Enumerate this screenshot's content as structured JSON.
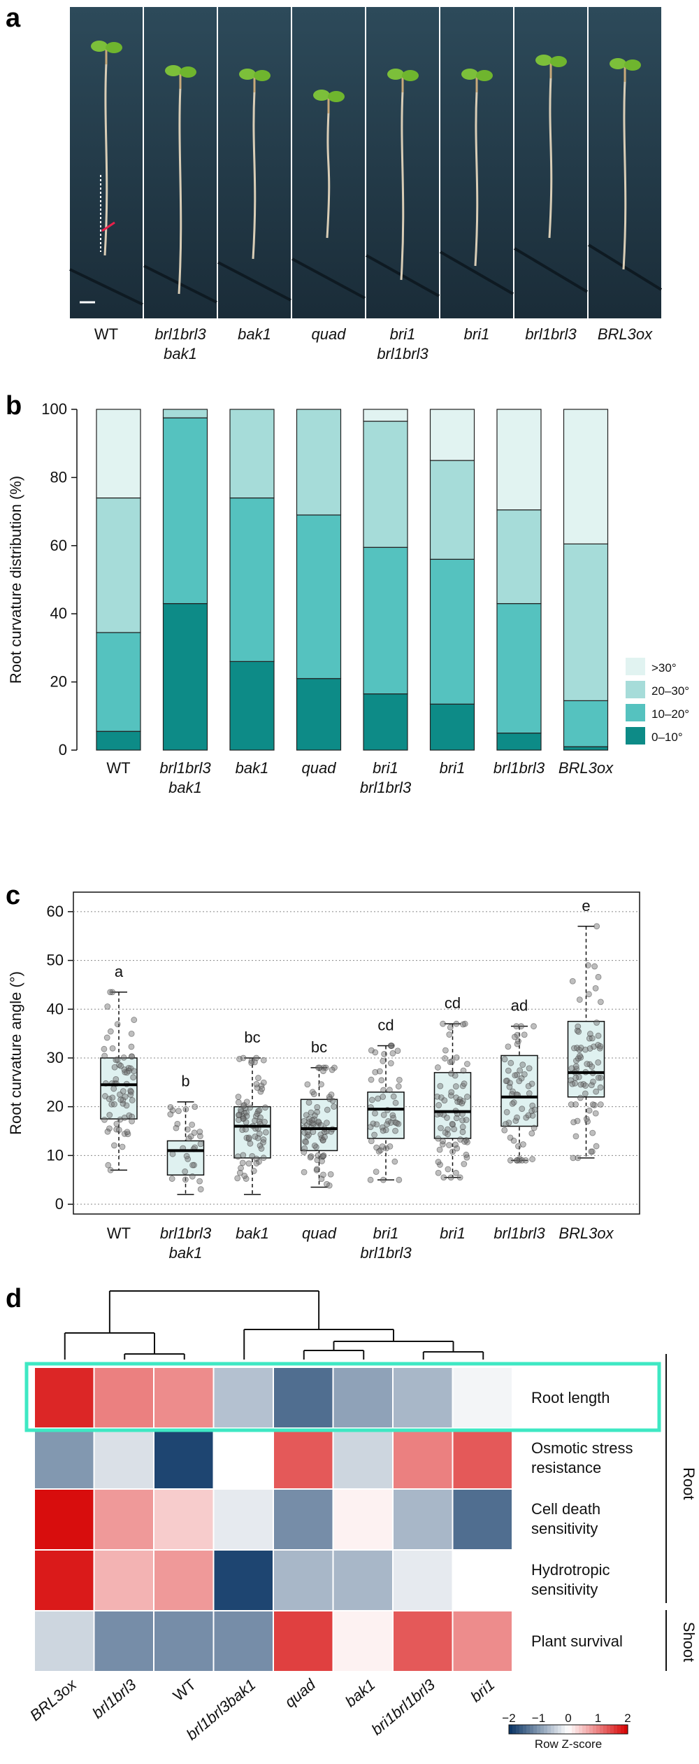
{
  "panel_a": {
    "letter": "a",
    "genotypes": [
      {
        "l1": "WT",
        "l2": "",
        "italic": false
      },
      {
        "l1": "brl1brl3",
        "l2": "bak1",
        "italic": true
      },
      {
        "l1": "bak1",
        "l2": "",
        "italic": true
      },
      {
        "l1": "quad",
        "l2": "",
        "italic": true
      },
      {
        "l1": "bri1",
        "l2": "brl1brl3",
        "italic": true
      },
      {
        "l1": "bri1",
        "l2": "",
        "italic": true
      },
      {
        "l1": "brl1brl3",
        "l2": "",
        "italic": true
      },
      {
        "l1": "BRL3ox",
        "l2": "",
        "italic": true
      }
    ]
  },
  "panel_b": {
    "letter": "b"
  },
  "panel_c": {
    "letter": "c"
  },
  "panel_d": {
    "letter": "d"
  },
  "colors": {
    "c0_10": "#0d8b87",
    "c10_20": "#55c2bf",
    "c20_30": "#a6dcd9",
    "c30": "#e1f3f1",
    "box_fill": "#dff1f0",
    "heat_low": "#053061",
    "heat_mid": "#ffffff",
    "heat_high": "#d60000",
    "highlight": "#3ee8c3"
  },
  "chart_data": [
    {
      "type": "bar",
      "stacked": true,
      "title": "",
      "ylabel": "Root curvature distribution (%)",
      "xlabel": "",
      "ylim": [
        0,
        100
      ],
      "yticks": [
        0,
        20,
        40,
        60,
        80,
        100
      ],
      "categories": [
        {
          "l1": "WT",
          "l2": "",
          "italic": false
        },
        {
          "l1": "brl1brl3",
          "l2": "bak1",
          "italic": true
        },
        {
          "l1": "bak1",
          "l2": "",
          "italic": true
        },
        {
          "l1": "quad",
          "l2": "",
          "italic": true
        },
        {
          "l1": "bri1",
          "l2": "brl1brl3",
          "italic": true
        },
        {
          "l1": "bri1",
          "l2": "",
          "italic": true
        },
        {
          "l1": "brl1brl3",
          "l2": "",
          "italic": true
        },
        {
          "l1": "BRL3ox",
          "l2": "",
          "italic": true
        }
      ],
      "series": [
        {
          "name": "0–10°",
          "color": "#0d8b87",
          "values": [
            5.5,
            43,
            26,
            21,
            16.5,
            13.5,
            5,
            1
          ]
        },
        {
          "name": "10–20°",
          "color": "#55c2bf",
          "values": [
            29,
            54.5,
            48,
            48,
            43,
            42.5,
            38,
            13.5
          ]
        },
        {
          "name": "20–30°",
          "color": "#a6dcd9",
          "values": [
            39.5,
            2.5,
            26,
            31,
            37,
            29,
            27.5,
            46
          ]
        },
        {
          "name": ">30°",
          "color": "#e1f3f1",
          "values": [
            26,
            0,
            0,
            0,
            3.5,
            15,
            29.5,
            39.5
          ]
        }
      ],
      "legend": [
        ">30°",
        "20–30°",
        "10–20°",
        "0–10°"
      ],
      "legend_position": "right"
    },
    {
      "type": "box",
      "title": "",
      "ylabel": "Root curvature angle (°)",
      "xlabel": "",
      "ylim": [
        0,
        60
      ],
      "yticks": [
        0,
        10,
        20,
        30,
        40,
        50,
        60
      ],
      "grid": true,
      "categories": [
        {
          "l1": "WT",
          "l2": "",
          "italic": false
        },
        {
          "l1": "brl1brl3",
          "l2": "bak1",
          "italic": true
        },
        {
          "l1": "bak1",
          "l2": "",
          "italic": true
        },
        {
          "l1": "quad",
          "l2": "",
          "italic": true
        },
        {
          "l1": "bri1",
          "l2": "brl1brl3",
          "italic": true
        },
        {
          "l1": "bri1",
          "l2": "",
          "italic": true
        },
        {
          "l1": "brl1brl3",
          "l2": "",
          "italic": true
        },
        {
          "l1": "BRL3ox",
          "l2": "",
          "italic": true
        }
      ],
      "boxes": [
        {
          "min": 7,
          "q1": 17.5,
          "median": 24.5,
          "q3": 30,
          "max": 43.5,
          "letter": "a",
          "n": 70
        },
        {
          "min": 2,
          "q1": 6,
          "median": 11,
          "q3": 13,
          "max": 21,
          "letter": "b",
          "n": 30
        },
        {
          "min": 2,
          "q1": 9.5,
          "median": 16,
          "q3": 20,
          "max": 30,
          "letter": "bc",
          "n": 75
        },
        {
          "min": 3.5,
          "q1": 11,
          "median": 15.5,
          "q3": 21.5,
          "max": 28,
          "letter": "bc",
          "n": 75
        },
        {
          "min": 5,
          "q1": 13.5,
          "median": 19.5,
          "q3": 23,
          "max": 32.5,
          "letter": "cd",
          "n": 55
        },
        {
          "min": 5.5,
          "q1": 13.5,
          "median": 19,
          "q3": 27,
          "max": 37,
          "letter": "cd",
          "n": 75
        },
        {
          "min": 9,
          "q1": 16,
          "median": 22,
          "q3": 30.5,
          "max": 36.5,
          "letter": "ad",
          "n": 60
        },
        {
          "min": 9.5,
          "q1": 22,
          "median": 27,
          "q3": 37.5,
          "max": 57,
          "letter": "e",
          "n": 75
        }
      ]
    },
    {
      "type": "heatmap",
      "title": "",
      "columns": [
        "BRL3ox",
        "brl1brl3",
        "WT",
        "brl1brl3bak1",
        "quad",
        "bak1",
        "bri1brl1brl3",
        "bri1"
      ],
      "column_italic": [
        true,
        true,
        false,
        true,
        true,
        true,
        true,
        true
      ],
      "rows": [
        {
          "l1": "Root length",
          "l2": ""
        },
        {
          "l1": "Osmotic stress",
          "l2": "resistance"
        },
        {
          "l1": "Cell death",
          "l2": "sensitivity"
        },
        {
          "l1": "Hydrotropic",
          "l2": "sensitivity"
        },
        {
          "l1": "Plant survival",
          "l2": ""
        }
      ],
      "values": [
        [
          1.7,
          1.0,
          0.9,
          -0.6,
          -1.4,
          -0.9,
          -0.7,
          -0.1
        ],
        [
          -1.0,
          -0.3,
          -1.8,
          0.0,
          1.3,
          -0.4,
          1.0,
          1.3
        ],
        [
          1.9,
          0.8,
          0.4,
          -0.2,
          -1.1,
          0.1,
          -0.7,
          -1.4
        ],
        [
          1.8,
          0.6,
          0.8,
          -1.8,
          -0.7,
          -0.7,
          -0.2,
          0.0
        ],
        [
          -0.4,
          -1.1,
          -1.1,
          -1.1,
          1.5,
          0.1,
          1.3,
          0.9
        ]
      ],
      "groups": [
        "Root",
        "Shoot"
      ],
      "highlighted_row": "Root length",
      "color_key": {
        "title": "Row Z-score",
        "ticks": [
          -2,
          -1,
          0,
          1,
          2
        ],
        "range": [
          -2,
          2
        ]
      },
      "column_dendrogram": true
    }
  ]
}
